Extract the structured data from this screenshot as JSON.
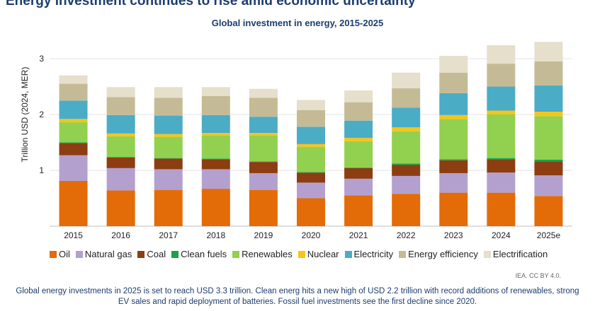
{
  "headline": "Energy investment continues to rise amid economic uncertainty",
  "credit": "IEA. CC BY 4.0.",
  "footnote": "Global energy investments in 2025 is set to reach USD 3.3 trillion. Clean energ hits a new high of USD 2.2 trillion with record additions of renewables, strong EV sales and rapid deployment of batteries. Fossil fuel investments see the first decline since 2020.",
  "chart_data": {
    "type": "bar",
    "stacked": true,
    "title": "Global investment in energy, 2015-2025",
    "xlabel": "",
    "ylabel": "Trillion USD (2024, MER)",
    "ylim": [
      0,
      3.3
    ],
    "yticks": [
      1,
      2,
      3
    ],
    "grid": true,
    "legend_position": "bottom",
    "categories": [
      "2015",
      "2016",
      "2017",
      "2018",
      "2019",
      "2020",
      "2021",
      "2022",
      "2023",
      "2024",
      "2025e"
    ],
    "series": [
      {
        "name": "Oil",
        "color": "#e36c09",
        "values": [
          0.81,
          0.64,
          0.65,
          0.67,
          0.65,
          0.5,
          0.55,
          0.58,
          0.6,
          0.6,
          0.54
        ]
      },
      {
        "name": "Natural gas",
        "color": "#b4a0cf",
        "values": [
          0.46,
          0.4,
          0.37,
          0.35,
          0.3,
          0.28,
          0.3,
          0.32,
          0.35,
          0.36,
          0.37
        ]
      },
      {
        "name": "Coal",
        "color": "#8c3d12",
        "values": [
          0.22,
          0.19,
          0.19,
          0.18,
          0.2,
          0.18,
          0.19,
          0.2,
          0.23,
          0.24,
          0.25
        ]
      },
      {
        "name": "Clean fuels",
        "color": "#17a34a",
        "values": [
          0.01,
          0.01,
          0.01,
          0.01,
          0.01,
          0.01,
          0.01,
          0.02,
          0.02,
          0.02,
          0.03
        ]
      },
      {
        "name": "Renewables",
        "color": "#92d050",
        "values": [
          0.36,
          0.37,
          0.38,
          0.41,
          0.46,
          0.45,
          0.47,
          0.58,
          0.72,
          0.78,
          0.78
        ]
      },
      {
        "name": "Nuclear",
        "color": "#f5c518",
        "values": [
          0.06,
          0.05,
          0.05,
          0.05,
          0.05,
          0.05,
          0.06,
          0.07,
          0.07,
          0.07,
          0.08
        ]
      },
      {
        "name": "Electricity",
        "color": "#4bacc6",
        "values": [
          0.33,
          0.33,
          0.33,
          0.32,
          0.29,
          0.31,
          0.31,
          0.35,
          0.39,
          0.43,
          0.47
        ]
      },
      {
        "name": "Energy efficiency",
        "color": "#c4bb96",
        "values": [
          0.3,
          0.32,
          0.32,
          0.34,
          0.34,
          0.3,
          0.33,
          0.35,
          0.37,
          0.41,
          0.43
        ]
      },
      {
        "name": "Electrification",
        "color": "#e5dfcb",
        "values": [
          0.15,
          0.18,
          0.19,
          0.16,
          0.16,
          0.18,
          0.21,
          0.28,
          0.3,
          0.33,
          0.35
        ]
      }
    ]
  }
}
